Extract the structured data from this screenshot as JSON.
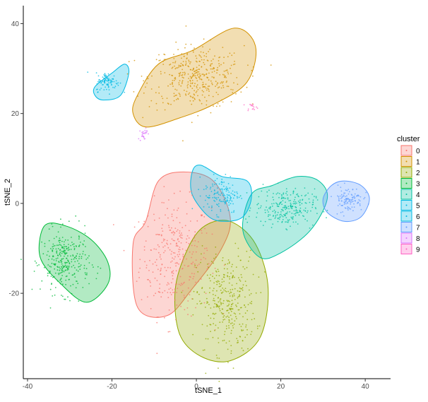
{
  "chart_data": {
    "type": "scatter",
    "xlabel": "tSNE_1",
    "ylabel": "tSNE_2",
    "xlim": [
      -41,
      46
    ],
    "ylim": [
      -39,
      44
    ],
    "xticks": [
      -40,
      -20,
      0,
      20,
      40
    ],
    "yticks": [
      -20,
      0,
      20,
      40
    ],
    "grid": false,
    "legend": {
      "title": "cluster",
      "placement": "right"
    },
    "clusters": [
      {
        "name": "0",
        "color": "#F8766D",
        "center": [
          -5,
          -12
        ],
        "spread": [
          6,
          9
        ],
        "hull": [
          [
            -12,
            -4
          ],
          [
            -9,
            5
          ],
          [
            -3,
            7
          ],
          [
            4,
            5
          ],
          [
            8,
            -3
          ],
          [
            6,
            -10
          ],
          [
            -1,
            -19
          ],
          [
            -7,
            -25
          ],
          [
            -14,
            -23
          ],
          [
            -15,
            -9
          ]
        ]
      },
      {
        "name": "1",
        "color": "#D39200",
        "center": [
          0,
          28
        ],
        "spread": [
          8,
          5
        ],
        "hull": [
          [
            -14,
            24
          ],
          [
            -9,
            31
          ],
          [
            -1,
            34
          ],
          [
            9,
            39
          ],
          [
            14,
            35
          ],
          [
            12,
            27
          ],
          [
            4,
            22
          ],
          [
            -4,
            19
          ],
          [
            -12,
            17
          ],
          [
            -15,
            20
          ]
        ]
      },
      {
        "name": "2",
        "color": "#93AA00",
        "center": [
          7,
          -22
        ],
        "spread": [
          5,
          8
        ],
        "hull": [
          [
            2,
            -5
          ],
          [
            8,
            -4
          ],
          [
            14,
            -9
          ],
          [
            17,
            -19
          ],
          [
            15,
            -30
          ],
          [
            8,
            -35
          ],
          [
            1,
            -34
          ],
          [
            -4,
            -29
          ],
          [
            -5,
            -19
          ],
          [
            -2,
            -10
          ]
        ]
      },
      {
        "name": "3",
        "color": "#00BA38",
        "center": [
          -31,
          -13
        ],
        "spread": [
          4,
          5
        ],
        "hull": [
          [
            -36,
            -5
          ],
          [
            -31,
            -5
          ],
          [
            -25,
            -8
          ],
          [
            -21,
            -13
          ],
          [
            -21,
            -18
          ],
          [
            -26,
            -22
          ],
          [
            -32,
            -18
          ],
          [
            -37,
            -12
          ]
        ]
      },
      {
        "name": "4",
        "color": "#00C19F",
        "center": [
          21,
          -1
        ],
        "spread": [
          5,
          3
        ],
        "hull": [
          [
            13,
            2
          ],
          [
            18,
            4
          ],
          [
            24,
            6
          ],
          [
            29,
            5
          ],
          [
            31,
            1
          ],
          [
            27,
            -6
          ],
          [
            20,
            -11
          ],
          [
            15,
            -12
          ],
          [
            11,
            -6
          ]
        ]
      },
      {
        "name": "5",
        "color": "#00B9E3",
        "center": [
          6,
          2
        ],
        "spread": [
          3,
          3
        ],
        "hull": [
          [
            -1,
            7
          ],
          [
            1,
            8.5
          ],
          [
            6,
            6
          ],
          [
            12,
            5
          ],
          [
            13,
            1
          ],
          [
            11,
            -3
          ],
          [
            7,
            -4
          ],
          [
            3,
            -3
          ],
          [
            -1,
            2
          ]
        ]
      },
      {
        "name": "6",
        "color": "#00B9E3",
        "center": [
          -21,
          27
        ],
        "spread": [
          2,
          1.5
        ],
        "hull": [
          [
            -24,
            26
          ],
          [
            -20,
            29
          ],
          [
            -17,
            31
          ],
          [
            -16,
            29
          ],
          [
            -18,
            24
          ],
          [
            -22,
            23
          ],
          [
            -24,
            24
          ]
        ]
      },
      {
        "name": "7",
        "color": "#619CFF",
        "center": [
          36,
          1
        ],
        "spread": [
          2.5,
          2
        ],
        "hull": [
          [
            32,
            4
          ],
          [
            35,
            5
          ],
          [
            39,
            4
          ],
          [
            41,
            1
          ],
          [
            39,
            -3
          ],
          [
            35,
            -4
          ],
          [
            31,
            -2
          ],
          [
            30,
            1
          ]
        ]
      },
      {
        "name": "8",
        "color": "#DB72FB",
        "center": [
          -12.5,
          15.5
        ],
        "spread": [
          0.6,
          1.2
        ],
        "hull": []
      },
      {
        "name": "9",
        "color": "#FF61C3",
        "center": [
          13,
          21.5
        ],
        "spread": [
          1,
          0.4
        ],
        "hull": []
      }
    ],
    "points_per_cluster": [
      320,
      400,
      340,
      300,
      250,
      140,
      90,
      110,
      25,
      15
    ]
  }
}
